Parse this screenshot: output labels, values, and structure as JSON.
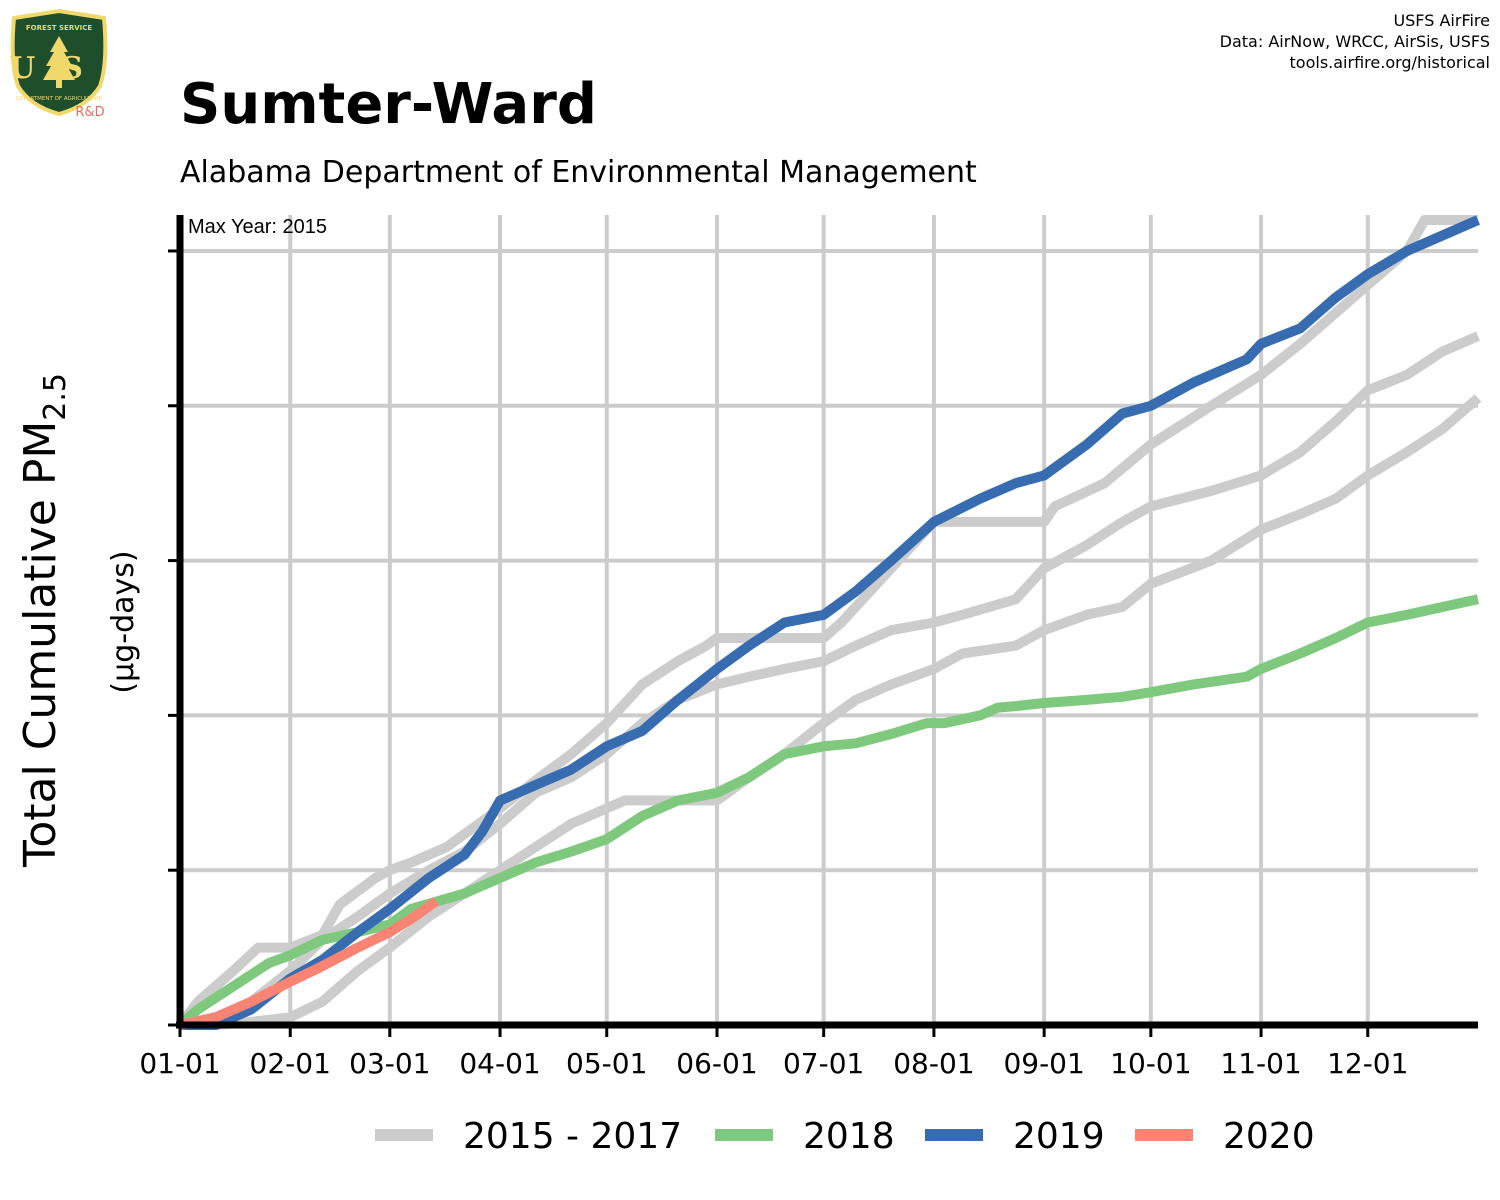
{
  "header": {
    "title": "Sumter-Ward",
    "subtitle": "Alabama Department of Environmental Management",
    "credits": [
      "USFS AirFire",
      "Data: AirNow, WRCC, AirSis, USFS",
      "tools.airfire.org/historical"
    ]
  },
  "logo": {
    "top_text": "FOREST SERVICE",
    "letters": "US",
    "bottom_text": "DEPARTMENT OF AGRICULTURE",
    "tag": "R&D",
    "colors": {
      "shield": "#1f4e2c",
      "gold": "#f1d86a",
      "tag": "#e8705a"
    }
  },
  "chart_data": {
    "type": "line",
    "title": "Sumter-Ward",
    "subtitle": "Alabama Department of Environmental Management",
    "ylabel_main": "Total Cumulative PM",
    "ylabel_sub": "2.5",
    "ylabel_units": "(µg-days)",
    "annotation": "Max Year: 2015",
    "x_ticks": [
      "01-01",
      "02-01",
      "03-01",
      "04-01",
      "05-01",
      "06-01",
      "07-01",
      "08-01",
      "09-01",
      "10-01",
      "11-01",
      "12-01"
    ],
    "x_tick_days": [
      0,
      31,
      59,
      90,
      120,
      151,
      181,
      212,
      243,
      273,
      304,
      334
    ],
    "xlim": [
      0,
      365
    ],
    "ylim": [
      0,
      5.2
    ],
    "y_gridlines": [
      1,
      2,
      3,
      4,
      5
    ],
    "y_tick_labels": false,
    "grid": true,
    "legend": {
      "position": "bottom",
      "entries": [
        {
          "label": "2015 - 2017",
          "color": "#cccccc"
        },
        {
          "label": "2018",
          "color": "#7fc97f"
        },
        {
          "label": "2019",
          "color": "#386cb0"
        },
        {
          "label": "2020",
          "color": "#f98474"
        }
      ]
    },
    "series": [
      {
        "color": "#cccccc",
        "group": "2015 - 2017",
        "x": [
          0,
          5,
          15,
          22,
          31,
          40,
          45,
          55,
          59,
          65,
          75,
          90,
          100,
          110,
          120,
          130,
          140,
          148,
          151,
          160,
          181,
          186,
          200,
          212,
          220,
          235,
          243,
          246,
          260,
          273,
          290,
          304,
          315,
          330,
          345,
          350,
          355,
          365
        ],
        "y": [
          0,
          0.15,
          0.35,
          0.5,
          0.5,
          0.58,
          0.78,
          0.95,
          1.0,
          1.05,
          1.15,
          1.4,
          1.58,
          1.75,
          1.95,
          2.2,
          2.35,
          2.45,
          2.5,
          2.5,
          2.5,
          2.6,
          2.95,
          3.25,
          3.25,
          3.25,
          3.25,
          3.35,
          3.5,
          3.75,
          4.0,
          4.2,
          4.4,
          4.7,
          5.0,
          5.2,
          5.2,
          5.2
        ]
      },
      {
        "color": "#cccccc",
        "group": "2015 - 2017",
        "x": [
          0,
          10,
          20,
          31,
          40,
          50,
          59,
          70,
          80,
          90,
          100,
          110,
          120,
          130,
          140,
          151,
          160,
          170,
          181,
          190,
          200,
          212,
          220,
          235,
          243,
          255,
          265,
          273,
          290,
          304,
          315,
          325,
          334,
          345,
          355,
          365
        ],
        "y": [
          0,
          0.05,
          0.15,
          0.35,
          0.55,
          0.7,
          0.85,
          1.0,
          1.12,
          1.3,
          1.5,
          1.6,
          1.75,
          1.95,
          2.1,
          2.2,
          2.25,
          2.3,
          2.35,
          2.45,
          2.55,
          2.6,
          2.65,
          2.75,
          2.95,
          3.1,
          3.25,
          3.35,
          3.45,
          3.55,
          3.7,
          3.9,
          4.1,
          4.2,
          4.35,
          4.45
        ]
      },
      {
        "color": "#cccccc",
        "group": "2015 - 2017",
        "x": [
          0,
          10,
          20,
          31,
          40,
          50,
          59,
          70,
          80,
          90,
          100,
          110,
          120,
          125,
          130,
          140,
          151,
          160,
          170,
          181,
          190,
          200,
          212,
          220,
          235,
          243,
          255,
          265,
          273,
          290,
          304,
          315,
          325,
          334,
          345,
          355,
          365
        ],
        "y": [
          0,
          0.0,
          0.02,
          0.05,
          0.15,
          0.35,
          0.5,
          0.7,
          0.85,
          1.0,
          1.15,
          1.3,
          1.4,
          1.45,
          1.45,
          1.45,
          1.45,
          1.6,
          1.75,
          1.95,
          2.1,
          2.2,
          2.3,
          2.4,
          2.45,
          2.55,
          2.65,
          2.7,
          2.85,
          3.0,
          3.2,
          3.3,
          3.4,
          3.55,
          3.7,
          3.85,
          4.05
        ]
      },
      {
        "color": "#7fc97f",
        "group": "2018",
        "x": [
          0,
          5,
          15,
          25,
          31,
          40,
          50,
          59,
          65,
          80,
          90,
          100,
          110,
          120,
          130,
          140,
          151,
          160,
          170,
          181,
          190,
          200,
          210,
          215,
          225,
          230,
          235,
          243,
          255,
          265,
          273,
          285,
          300,
          304,
          315,
          325,
          334,
          345,
          355,
          365
        ],
        "y": [
          0,
          0.1,
          0.25,
          0.4,
          0.45,
          0.55,
          0.6,
          0.65,
          0.75,
          0.85,
          0.95,
          1.05,
          1.12,
          1.2,
          1.35,
          1.45,
          1.5,
          1.6,
          1.75,
          1.8,
          1.82,
          1.88,
          1.95,
          1.95,
          2.0,
          2.05,
          2.06,
          2.08,
          2.1,
          2.12,
          2.15,
          2.2,
          2.25,
          2.3,
          2.4,
          2.5,
          2.6,
          2.65,
          2.7,
          2.75
        ]
      },
      {
        "color": "#386cb0",
        "group": "2019",
        "x": [
          0,
          10,
          20,
          31,
          40,
          50,
          59,
          70,
          80,
          85,
          90,
          100,
          110,
          120,
          130,
          140,
          151,
          160,
          170,
          181,
          190,
          200,
          212,
          225,
          235,
          243,
          255,
          265,
          273,
          285,
          300,
          304,
          315,
          325,
          334,
          345,
          355,
          365
        ],
        "y": [
          0,
          0.0,
          0.1,
          0.3,
          0.42,
          0.6,
          0.75,
          0.95,
          1.1,
          1.25,
          1.45,
          1.55,
          1.65,
          1.8,
          1.9,
          2.1,
          2.3,
          2.45,
          2.6,
          2.65,
          2.8,
          3.0,
          3.25,
          3.4,
          3.5,
          3.55,
          3.75,
          3.95,
          4.0,
          4.15,
          4.3,
          4.4,
          4.5,
          4.7,
          4.85,
          5.0,
          5.1,
          5.2
        ]
      },
      {
        "color": "#f98474",
        "group": "2020",
        "x": [
          0,
          10,
          20,
          31,
          40,
          50,
          59,
          66,
          72
        ],
        "y": [
          0,
          0.05,
          0.15,
          0.28,
          0.38,
          0.5,
          0.6,
          0.7,
          0.8
        ]
      }
    ]
  }
}
